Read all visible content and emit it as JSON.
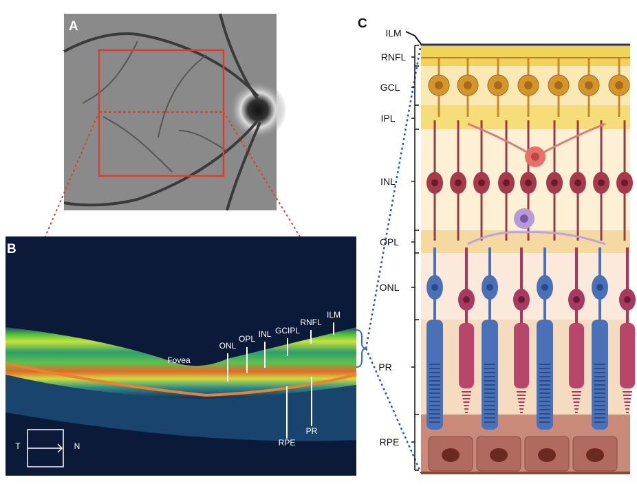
{
  "panels": [
    {
      "label": "A"
    },
    {
      "label": "B",
      "fovea": "Fovea",
      "layers": [
        "ONL",
        "OPL",
        "INL",
        "GCIPL",
        "RNFL",
        "ILM"
      ],
      "lower_layers": [
        "RPE",
        "PR"
      ],
      "orientation": {
        "left": "T",
        "right": "N"
      }
    },
    {
      "label": "C",
      "layers": [
        "ILM",
        "RNFL",
        "GCL",
        "IPL",
        "INL",
        "OPL",
        "ONL",
        "PR",
        "RPE"
      ]
    }
  ]
}
